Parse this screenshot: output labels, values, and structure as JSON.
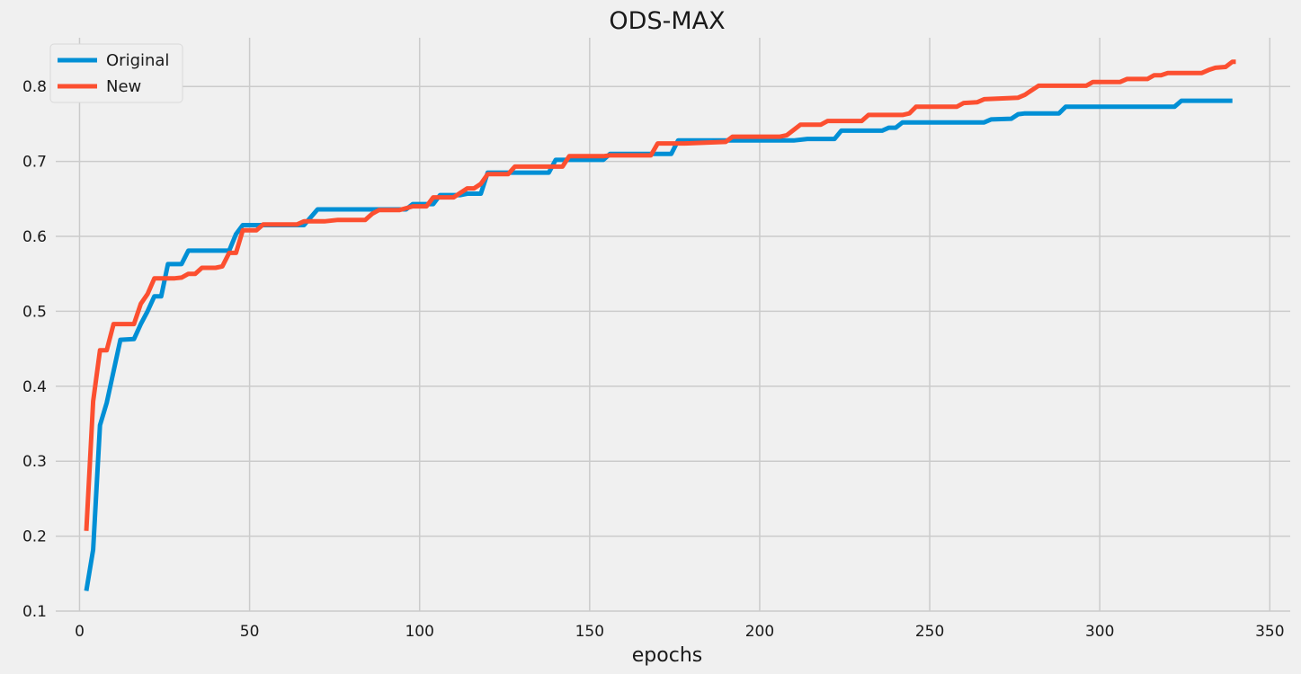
{
  "chart_data": {
    "type": "line",
    "title": "ODS-MAX",
    "xlabel": "epochs",
    "ylabel": "",
    "xlim": [
      -7,
      356
    ],
    "ylim": [
      0.1,
      0.865
    ],
    "xticks": [
      0,
      50,
      100,
      150,
      200,
      250,
      300,
      350
    ],
    "yticks": [
      0.1,
      0.2,
      0.3,
      0.4,
      0.5,
      0.6,
      0.7,
      0.8
    ],
    "grid": true,
    "legend": "top-left",
    "series": [
      {
        "name": "Original",
        "color": "#008fd5",
        "points": [
          [
            2,
            0.127
          ],
          [
            4,
            0.182
          ],
          [
            6,
            0.348
          ],
          [
            8,
            0.378
          ],
          [
            10,
            0.42
          ],
          [
            12,
            0.462
          ],
          [
            16,
            0.463
          ],
          [
            18,
            0.483
          ],
          [
            20,
            0.5
          ],
          [
            22,
            0.52
          ],
          [
            24,
            0.52
          ],
          [
            26,
            0.563
          ],
          [
            30,
            0.563
          ],
          [
            32,
            0.581
          ],
          [
            44,
            0.581
          ],
          [
            46,
            0.603
          ],
          [
            48,
            0.615
          ],
          [
            66,
            0.615
          ],
          [
            70,
            0.636
          ],
          [
            96,
            0.636
          ],
          [
            98,
            0.643
          ],
          [
            104,
            0.643
          ],
          [
            106,
            0.655
          ],
          [
            112,
            0.655
          ],
          [
            114,
            0.657
          ],
          [
            118,
            0.657
          ],
          [
            120,
            0.685
          ],
          [
            138,
            0.685
          ],
          [
            140,
            0.702
          ],
          [
            154,
            0.702
          ],
          [
            156,
            0.71
          ],
          [
            174,
            0.71
          ],
          [
            176,
            0.728
          ],
          [
            210,
            0.728
          ],
          [
            214,
            0.73
          ],
          [
            222,
            0.73
          ],
          [
            224,
            0.741
          ],
          [
            236,
            0.741
          ],
          [
            238,
            0.745
          ],
          [
            240,
            0.745
          ],
          [
            242,
            0.752
          ],
          [
            266,
            0.752
          ],
          [
            268,
            0.756
          ],
          [
            274,
            0.757
          ],
          [
            276,
            0.763
          ],
          [
            278,
            0.764
          ],
          [
            288,
            0.764
          ],
          [
            290,
            0.773
          ],
          [
            322,
            0.773
          ],
          [
            324,
            0.781
          ],
          [
            339,
            0.781
          ]
        ]
      },
      {
        "name": "New",
        "color": "#fc4f30",
        "points": [
          [
            2,
            0.207
          ],
          [
            4,
            0.38
          ],
          [
            6,
            0.448
          ],
          [
            8,
            0.448
          ],
          [
            10,
            0.483
          ],
          [
            16,
            0.483
          ],
          [
            18,
            0.51
          ],
          [
            20,
            0.523
          ],
          [
            22,
            0.544
          ],
          [
            28,
            0.544
          ],
          [
            30,
            0.545
          ],
          [
            32,
            0.55
          ],
          [
            34,
            0.55
          ],
          [
            36,
            0.558
          ],
          [
            40,
            0.558
          ],
          [
            42,
            0.56
          ],
          [
            44,
            0.578
          ],
          [
            46,
            0.578
          ],
          [
            48,
            0.608
          ],
          [
            52,
            0.608
          ],
          [
            54,
            0.616
          ],
          [
            64,
            0.616
          ],
          [
            66,
            0.62
          ],
          [
            72,
            0.62
          ],
          [
            76,
            0.622
          ],
          [
            84,
            0.622
          ],
          [
            86,
            0.63
          ],
          [
            88,
            0.635
          ],
          [
            94,
            0.635
          ],
          [
            98,
            0.64
          ],
          [
            102,
            0.64
          ],
          [
            104,
            0.652
          ],
          [
            110,
            0.652
          ],
          [
            114,
            0.664
          ],
          [
            116,
            0.664
          ],
          [
            118,
            0.67
          ],
          [
            120,
            0.683
          ],
          [
            126,
            0.683
          ],
          [
            128,
            0.693
          ],
          [
            142,
            0.693
          ],
          [
            144,
            0.707
          ],
          [
            154,
            0.707
          ],
          [
            156,
            0.708
          ],
          [
            168,
            0.708
          ],
          [
            170,
            0.724
          ],
          [
            176,
            0.724
          ],
          [
            178,
            0.724
          ],
          [
            184,
            0.725
          ],
          [
            190,
            0.726
          ],
          [
            192,
            0.733
          ],
          [
            206,
            0.733
          ],
          [
            208,
            0.735
          ],
          [
            212,
            0.749
          ],
          [
            218,
            0.749
          ],
          [
            220,
            0.754
          ],
          [
            230,
            0.754
          ],
          [
            232,
            0.762
          ],
          [
            242,
            0.762
          ],
          [
            244,
            0.764
          ],
          [
            246,
            0.773
          ],
          [
            258,
            0.773
          ],
          [
            260,
            0.778
          ],
          [
            264,
            0.779
          ],
          [
            266,
            0.783
          ],
          [
            276,
            0.785
          ],
          [
            278,
            0.789
          ],
          [
            282,
            0.801
          ],
          [
            296,
            0.801
          ],
          [
            298,
            0.806
          ],
          [
            306,
            0.806
          ],
          [
            308,
            0.81
          ],
          [
            314,
            0.81
          ],
          [
            316,
            0.815
          ],
          [
            318,
            0.815
          ],
          [
            320,
            0.818
          ],
          [
            330,
            0.818
          ],
          [
            332,
            0.822
          ],
          [
            334,
            0.825
          ],
          [
            337,
            0.826
          ],
          [
            339,
            0.833
          ],
          [
            340,
            0.833
          ]
        ]
      }
    ]
  }
}
